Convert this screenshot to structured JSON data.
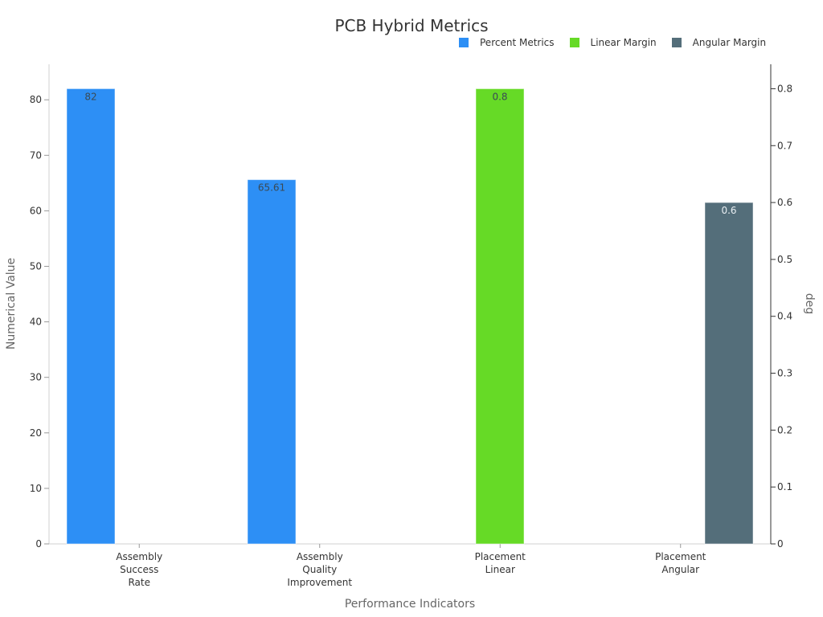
{
  "chart_data": {
    "type": "bar",
    "title": "PCB Hybrid Metrics",
    "xlabel": "Performance Indicators",
    "ylabel": "Numerical Value",
    "y2label": "deg",
    "categories": [
      "Assembly Success Rate",
      "Assembly Quality Improvement",
      "Placement Linear",
      "Placement Angular"
    ],
    "category_lines": [
      [
        "Assembly",
        "Success",
        "Rate"
      ],
      [
        "Assembly",
        "Quality",
        "Improvement"
      ],
      [
        "Placement",
        "Linear"
      ],
      [
        "Placement",
        "Angular"
      ]
    ],
    "series": [
      {
        "name": "Percent Metrics",
        "axis": "left",
        "color": "#2d8ff5",
        "values": [
          82,
          65.61,
          null,
          null
        ],
        "labels": [
          "82",
          "65.61",
          "",
          ""
        ]
      },
      {
        "name": "Linear Margin",
        "axis": "right",
        "color": "#66da26",
        "values": [
          null,
          null,
          0.8,
          null
        ],
        "labels": [
          "",
          "",
          "0.8",
          ""
        ]
      },
      {
        "name": "Angular Margin",
        "axis": "right",
        "color": "#546e7a",
        "values": [
          null,
          null,
          null,
          0.6
        ],
        "labels": [
          "",
          "",
          "",
          "0.6"
        ]
      }
    ],
    "ylim": [
      0,
      86.4
    ],
    "y2lim": [
      0,
      0.843
    ],
    "yticks": [
      0,
      10,
      20,
      30,
      40,
      50,
      60,
      70,
      80
    ],
    "y2ticks": [
      "0",
      "0.1",
      "0.2",
      "0.3",
      "0.4",
      "0.5",
      "0.6",
      "0.7",
      "0.8"
    ],
    "grid": false,
    "legend_position": "top-right"
  },
  "legend": [
    {
      "label": "Percent Metrics",
      "color": "#2d8ff5"
    },
    {
      "label": "Linear Margin",
      "color": "#66da26"
    },
    {
      "label": "Angular Margin",
      "color": "#546e7a"
    }
  ]
}
